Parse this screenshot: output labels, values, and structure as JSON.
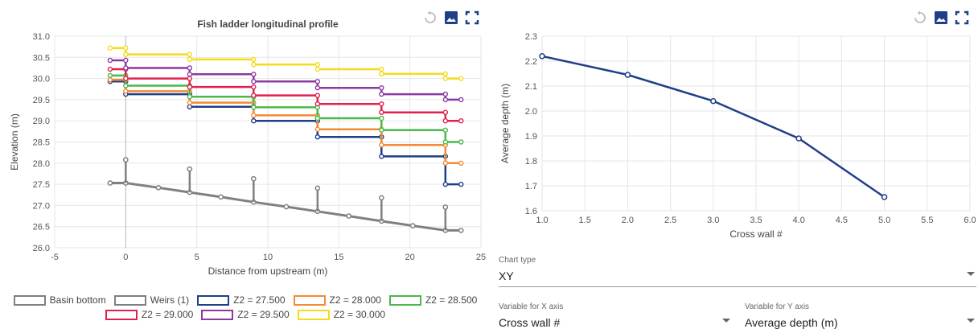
{
  "chart_data": [
    {
      "type": "line",
      "title": "Fish ladder longitudinal profile",
      "xlabel": "Distance from upstream (m)",
      "ylabel": "Elevation (m)",
      "xlim": [
        -5,
        25
      ],
      "ylim": [
        26.0,
        31.0
      ],
      "xticks": [
        "-5",
        "0",
        "5",
        "10",
        "15",
        "20",
        "25"
      ],
      "yticks": [
        "26.0",
        "26.5",
        "27.0",
        "27.5",
        "28.0",
        "28.5",
        "29.0",
        "29.5",
        "30.0",
        "30.5",
        "31.0"
      ],
      "grid": true,
      "legend_position": "bottom",
      "basin_bottom": {
        "name": "Basin bottom",
        "color": "#808080",
        "x": [
          -1.1,
          0,
          2.3,
          4.5,
          6.7,
          9.0,
          11.3,
          13.5,
          15.7,
          18.0,
          20.2,
          22.5,
          23.6
        ],
        "y": [
          27.53,
          27.53,
          27.42,
          27.31,
          27.2,
          27.08,
          26.97,
          26.86,
          26.75,
          26.63,
          26.52,
          26.41,
          26.41
        ]
      },
      "weirs": {
        "name": "Weirs (1)",
        "color": "#808080",
        "x": [
          0,
          4.5,
          9.0,
          13.5,
          18.0,
          22.5
        ],
        "bottom": [
          27.53,
          27.31,
          27.08,
          26.86,
          26.63,
          26.41
        ],
        "top": [
          28.08,
          27.86,
          27.63,
          27.41,
          27.18,
          26.96
        ]
      },
      "weir_x": [
        0,
        4.5,
        9.0,
        13.5,
        18.0,
        22.5
      ],
      "x_start": -1.1,
      "x_end": 23.6,
      "series": [
        {
          "name": "Z2 = 27.500",
          "color": "#1f3f88",
          "start": 29.93,
          "levels": [
            29.63,
            29.33,
            29.0,
            28.62,
            28.16,
            27.5
          ]
        },
        {
          "name": "Z2 = 28.000",
          "color": "#f38b34",
          "start": 29.97,
          "levels": [
            29.7,
            29.43,
            29.13,
            28.8,
            28.43,
            28.0
          ]
        },
        {
          "name": "Z2 = 28.500",
          "color": "#4bb84a",
          "start": 30.07,
          "levels": [
            29.83,
            29.57,
            29.32,
            29.06,
            28.78,
            28.5
          ]
        },
        {
          "name": "Z2 = 29.000",
          "color": "#e0214f",
          "start": 30.22,
          "levels": [
            30.0,
            29.8,
            29.6,
            29.4,
            29.2,
            29.0
          ]
        },
        {
          "name": "Z2 = 29.500",
          "color": "#8a3aa0",
          "start": 30.43,
          "levels": [
            30.25,
            30.1,
            29.93,
            29.78,
            29.63,
            29.5
          ]
        },
        {
          "name": "Z2 = 30.000",
          "color": "#f3dc1c",
          "start": 30.72,
          "levels": [
            30.57,
            30.45,
            30.33,
            30.22,
            30.11,
            30.0
          ]
        }
      ]
    },
    {
      "type": "line",
      "title": "",
      "xlabel": "Cross wall #",
      "ylabel": "Average depth (m)",
      "xlim": [
        1.0,
        6.0
      ],
      "ylim": [
        1.6,
        2.3
      ],
      "xticks": [
        "1.0",
        "1.5",
        "2.0",
        "2.5",
        "3.0",
        "3.5",
        "4.0",
        "4.5",
        "5.0",
        "5.5",
        "6.0"
      ],
      "yticks": [
        "1.6",
        "1.7",
        "1.8",
        "1.9",
        "2.0",
        "2.1",
        "2.2",
        "2.3"
      ],
      "grid": true,
      "series": [
        {
          "color": "#1f3f88",
          "x": [
            1,
            2,
            3,
            4,
            5
          ],
          "y": [
            2.22,
            2.145,
            2.04,
            1.89,
            1.655
          ]
        }
      ]
    }
  ],
  "controls": {
    "chart_type": {
      "label": "Chart type",
      "value": "XY"
    },
    "x_axis": {
      "label": "Variable for X axis",
      "value": "Cross wall #"
    },
    "y_axis": {
      "label": "Variable for Y axis",
      "value": "Average depth (m)"
    }
  },
  "toolbar_icons": [
    "reset-icon",
    "image-icon",
    "fullscreen-icon"
  ],
  "colors": {
    "accent": "#1f3f88",
    "grid": "#e6e6e6",
    "icon_gray": "#bdbdbd"
  }
}
